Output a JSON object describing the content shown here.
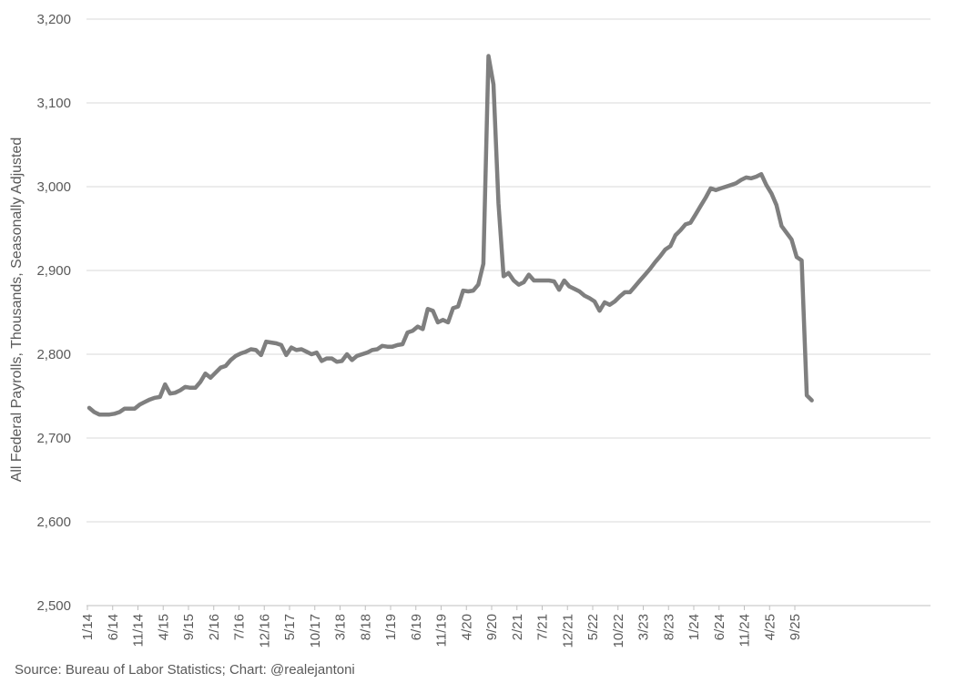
{
  "chart_data": {
    "type": "line",
    "title": "",
    "xlabel": "",
    "ylabel": "All Federal Payrolls, Thousands, Seasonally Adjusted",
    "ylim": [
      2500,
      3200
    ],
    "yticks": [
      2500,
      2600,
      2700,
      2800,
      2900,
      3000,
      3100,
      3200
    ],
    "ytick_labels": [
      "2,500",
      "2,600",
      "2,700",
      "2,800",
      "2,900",
      "3,000",
      "3,100",
      "3,200"
    ],
    "xtick_labels": [
      "1/14",
      "6/14",
      "11/14",
      "4/15",
      "9/15",
      "2/16",
      "7/16",
      "12/16",
      "5/17",
      "10/17",
      "3/18",
      "8/18",
      "1/19",
      "6/19",
      "11/19",
      "4/20",
      "9/20",
      "2/21",
      "7/21",
      "12/21",
      "5/22",
      "10/22",
      "3/23",
      "8/23",
      "1/24",
      "6/24",
      "11/24",
      "4/25",
      "9/25"
    ],
    "grid": true,
    "legend": "none",
    "source": "Source: Bureau of Labor Statistics; Chart: @realejantoni",
    "colors": {
      "series": "#7f7f7f"
    },
    "series": [
      {
        "x_start": "1/14",
        "values": [
          2736,
          2731,
          2728,
          2728,
          2728,
          2729,
          2731,
          2735,
          2735,
          2735,
          2740,
          2743,
          2746,
          2748,
          2749,
          2764,
          2753,
          2754,
          2757,
          2761,
          2760,
          2760,
          2767,
          2777,
          2772,
          2778,
          2784,
          2786,
          2793,
          2798,
          2801,
          2803,
          2806,
          2805,
          2799,
          2815,
          2814,
          2813,
          2811,
          2799,
          2808,
          2805,
          2806,
          2803,
          2800,
          2802,
          2792,
          2795,
          2795,
          2791,
          2792,
          2800,
          2793,
          2798,
          2800,
          2802,
          2805,
          2806,
          2810,
          2809,
          2809,
          2811,
          2812,
          2826,
          2828,
          2833,
          2830,
          2854,
          2852,
          2838,
          2841,
          2838,
          2855,
          2857,
          2876,
          2875,
          2876,
          2883,
          2908,
          3156,
          3122,
          2980,
          2893,
          2897,
          2888,
          2883,
          2886,
          2895,
          2888,
          2888,
          2888,
          2888,
          2887,
          2877,
          2888,
          2881,
          2878,
          2875,
          2870,
          2867,
          2863,
          2852,
          2862,
          2859,
          2863,
          2869,
          2874,
          2874,
          2881,
          2888,
          2895,
          2902,
          2910,
          2917,
          2925,
          2929,
          2942,
          2948,
          2955,
          2957,
          2967,
          2977,
          2987,
          2998,
          2996,
          2998,
          3000,
          3002,
          3004,
          3008,
          3011,
          3010,
          3012,
          3015,
          3002,
          2992,
          2978,
          2953,
          2945,
          2937,
          2916,
          2912,
          2751,
          2745
        ]
      }
    ]
  }
}
